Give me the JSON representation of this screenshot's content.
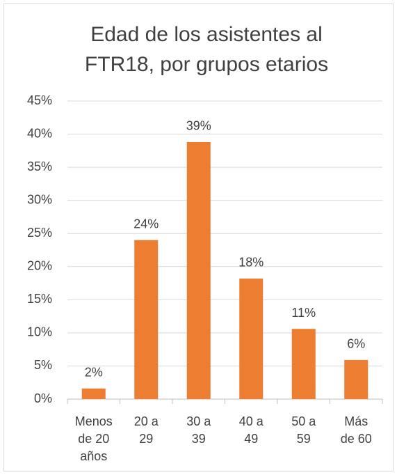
{
  "chart_data": {
    "type": "bar",
    "title": "Edad de los asistentes al FTR18, por grupos etarios",
    "categories": [
      "Menos de 20 años",
      "20 a 29",
      "30 a 39",
      "40 a 49",
      "50 a 59",
      "Más de 60"
    ],
    "values": [
      1.6,
      24,
      38.8,
      18.2,
      10.6,
      5.9
    ],
    "value_labels": [
      "2%",
      "24%",
      "39%",
      "18%",
      "11%",
      "6%"
    ],
    "color": "#ed7d31",
    "ylim": [
      0,
      45
    ],
    "yticks": [
      {
        "value": 0,
        "label": "0%"
      },
      {
        "value": 5,
        "label": "5%"
      },
      {
        "value": 10,
        "label": "10%"
      },
      {
        "value": 15,
        "label": "15%"
      },
      {
        "value": 20,
        "label": "20%"
      },
      {
        "value": 25,
        "label": "25%"
      },
      {
        "value": 30,
        "label": "30%"
      },
      {
        "value": 35,
        "label": "35%"
      },
      {
        "value": 40,
        "label": "40%"
      },
      {
        "value": 45,
        "label": "45%"
      }
    ],
    "grid": true
  }
}
